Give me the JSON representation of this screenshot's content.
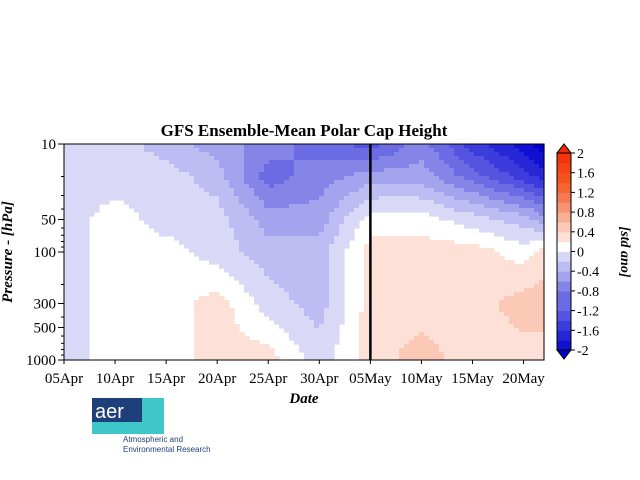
{
  "chart_data": {
    "type": "heatmap",
    "title": "GFS Ensemble-Mean Polar Cap Height",
    "xlabel": "Date",
    "ylabel": "Pressure - [hPa]",
    "y_scale": "log",
    "y_inverted": true,
    "ylim": [
      1000,
      10
    ],
    "xlim": [
      "05Apr",
      "22May"
    ],
    "x_ticks": [
      "05Apr",
      "10Apr",
      "15Apr",
      "20Apr",
      "25Apr",
      "30Apr",
      "05May",
      "10May",
      "15May",
      "20May"
    ],
    "y_ticks": [
      10,
      50,
      100,
      300,
      500,
      1000
    ],
    "forecast_start": "05May",
    "colorbar": {
      "label": "[std ano]",
      "ticks": [
        "2",
        "1.6",
        "1.2",
        "0.8",
        "0.4",
        "0",
        "-0.4",
        "-0.8",
        "-1.2",
        "-1.6",
        "-2"
      ],
      "range": [
        -2,
        2
      ],
      "levels": [
        {
          "value": -2.0,
          "color": "#0000cd"
        },
        {
          "value": -1.8,
          "color": "#1010d2"
        },
        {
          "value": -1.6,
          "color": "#2626d6"
        },
        {
          "value": -1.4,
          "color": "#3c3cdc"
        },
        {
          "value": -1.2,
          "color": "#5454e0"
        },
        {
          "value": -1.0,
          "color": "#6b6be4"
        },
        {
          "value": -0.8,
          "color": "#8585e8"
        },
        {
          "value": -0.6,
          "color": "#a3a3ee"
        },
        {
          "value": -0.4,
          "color": "#bdbdf3"
        },
        {
          "value": -0.2,
          "color": "#d9d9f7"
        },
        {
          "value": 0.0,
          "color": "#ffffff"
        },
        {
          "value": 0.2,
          "color": "#fde0d6"
        },
        {
          "value": 0.4,
          "color": "#fbc9b6"
        },
        {
          "value": 0.6,
          "color": "#f9ae94"
        },
        {
          "value": 0.8,
          "color": "#f79372"
        },
        {
          "value": 1.0,
          "color": "#f57a51"
        },
        {
          "value": 1.2,
          "color": "#f46534"
        },
        {
          "value": 1.4,
          "color": "#f3531c"
        },
        {
          "value": 1.6,
          "color": "#f24414"
        },
        {
          "value": 1.8,
          "color": "#f1360c"
        },
        {
          "value": 2.0,
          "color": "#ef2a05"
        }
      ]
    },
    "anomaly_grid": {
      "dates": [
        "05Apr",
        "10Apr",
        "15Apr",
        "20Apr",
        "25Apr",
        "30Apr",
        "05May",
        "10May",
        "15May",
        "20May",
        "22May"
      ],
      "pressure_levels": [
        10,
        20,
        50,
        100,
        300,
        1000
      ],
      "values": [
        [
          -0.2,
          -0.2,
          -0.2,
          -0.2,
          -0.2,
          -0.2
        ],
        [
          -0.2,
          -0.2,
          0.0,
          0.0,
          0.0,
          0.0
        ],
        [
          -0.4,
          -0.2,
          -0.2,
          0.0,
          0.0,
          0.0
        ],
        [
          -0.6,
          -0.4,
          -0.2,
          -0.2,
          0.2,
          0.2
        ],
        [
          -0.8,
          -1.0,
          -0.6,
          -0.4,
          -0.2,
          0.2
        ],
        [
          -1.0,
          -0.8,
          -0.6,
          -0.4,
          -0.4,
          -0.2
        ],
        [
          -1.2,
          -0.6,
          0.0,
          0.2,
          0.2,
          0.2
        ],
        [
          -0.8,
          -0.6,
          0.0,
          0.2,
          0.2,
          0.4
        ],
        [
          -1.4,
          -1.0,
          -0.2,
          0.2,
          0.2,
          0.2
        ],
        [
          -1.8,
          -1.4,
          -0.4,
          0.0,
          0.4,
          0.2
        ],
        [
          -2.0,
          -1.6,
          -0.6,
          0.2,
          0.4,
          0.2
        ]
      ]
    }
  },
  "logo": {
    "text": "aer",
    "line1": "Atmospheric and",
    "line2": "Environmental Research"
  }
}
